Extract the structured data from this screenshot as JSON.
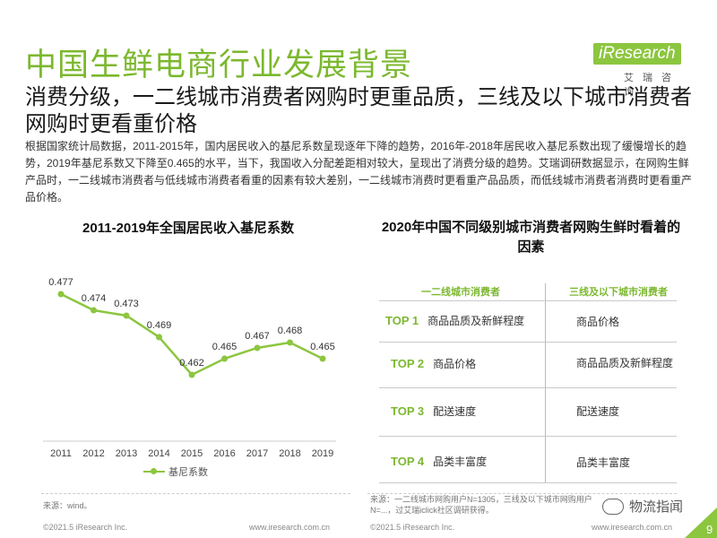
{
  "title": "中国生鲜电商行业发展背景",
  "logo": {
    "text": "iResearch",
    "sub": "艾瑞咨询"
  },
  "subtitle": "消费分级，一二线城市消费者网购时更重品质，三线及以下城市消费者网购时更看重价格",
  "paragraph": "根据国家统计局数据，2011-2015年，国内居民收入的基尼系数呈现逐年下降的趋势，2016年-2018年居民收入基尼系数出现了缓慢增长的趋势，2019年基尼系数又下降至0.465的水平，当下，我国收入分配差距相对较大，呈现出了消费分级的趋势。艾瑞调研数据显示，在网购生鲜产品时，一二线城市消费者与低线城市消费者看重的因素有较大差别，一二线城市消费时更看重产品品质，而低线城市消费者消费时更看重产品价格。",
  "chart_data": [
    {
      "type": "line",
      "title": "2011-2019年全国居民收入基尼系数",
      "categories": [
        "2011",
        "2012",
        "2013",
        "2014",
        "2015",
        "2016",
        "2017",
        "2018",
        "2019"
      ],
      "series": [
        {
          "name": "基尼系数",
          "values": [
            0.477,
            0.474,
            0.473,
            0.469,
            0.462,
            0.465,
            0.467,
            0.468,
            0.465
          ]
        }
      ],
      "ylim": [
        0.455,
        0.48
      ],
      "color": "#8cc63f",
      "legend": "bottom",
      "grid": false
    },
    {
      "type": "table",
      "title": "2020年中国不同级别城市消费者网购生鲜时看着的因素",
      "columns": [
        "一二线城市消费者",
        "三线及以下城市消费者"
      ],
      "rows": [
        {
          "rank": "TOP 1",
          "tier12": "商品品质及新鲜程度",
          "tier3": "商品价格"
        },
        {
          "rank": "TOP 2",
          "tier12": "商品价格",
          "tier3": "商品品质及新鲜程度"
        },
        {
          "rank": "TOP 3",
          "tier12": "配送速度",
          "tier3": "配送速度"
        },
        {
          "rank": "TOP 4",
          "tier12": "品类丰富度",
          "tier3": "品类丰富度"
        }
      ]
    }
  ],
  "source_left": "来源：wind。",
  "source_right": "来源：一二线城市网购用户N=1305，三线及以下城市网购用户N=...，过艾瑞iclick社区调研获得。",
  "footer": {
    "left_copyright": "©2021.5 iResearch Inc.",
    "left_url": "www.iresearch.com.cn",
    "right_copyright": "©2021.5 iResearch Inc.",
    "right_url": "www.iresearch.com.cn"
  },
  "watermark": "物流指闻",
  "page_number": "9"
}
